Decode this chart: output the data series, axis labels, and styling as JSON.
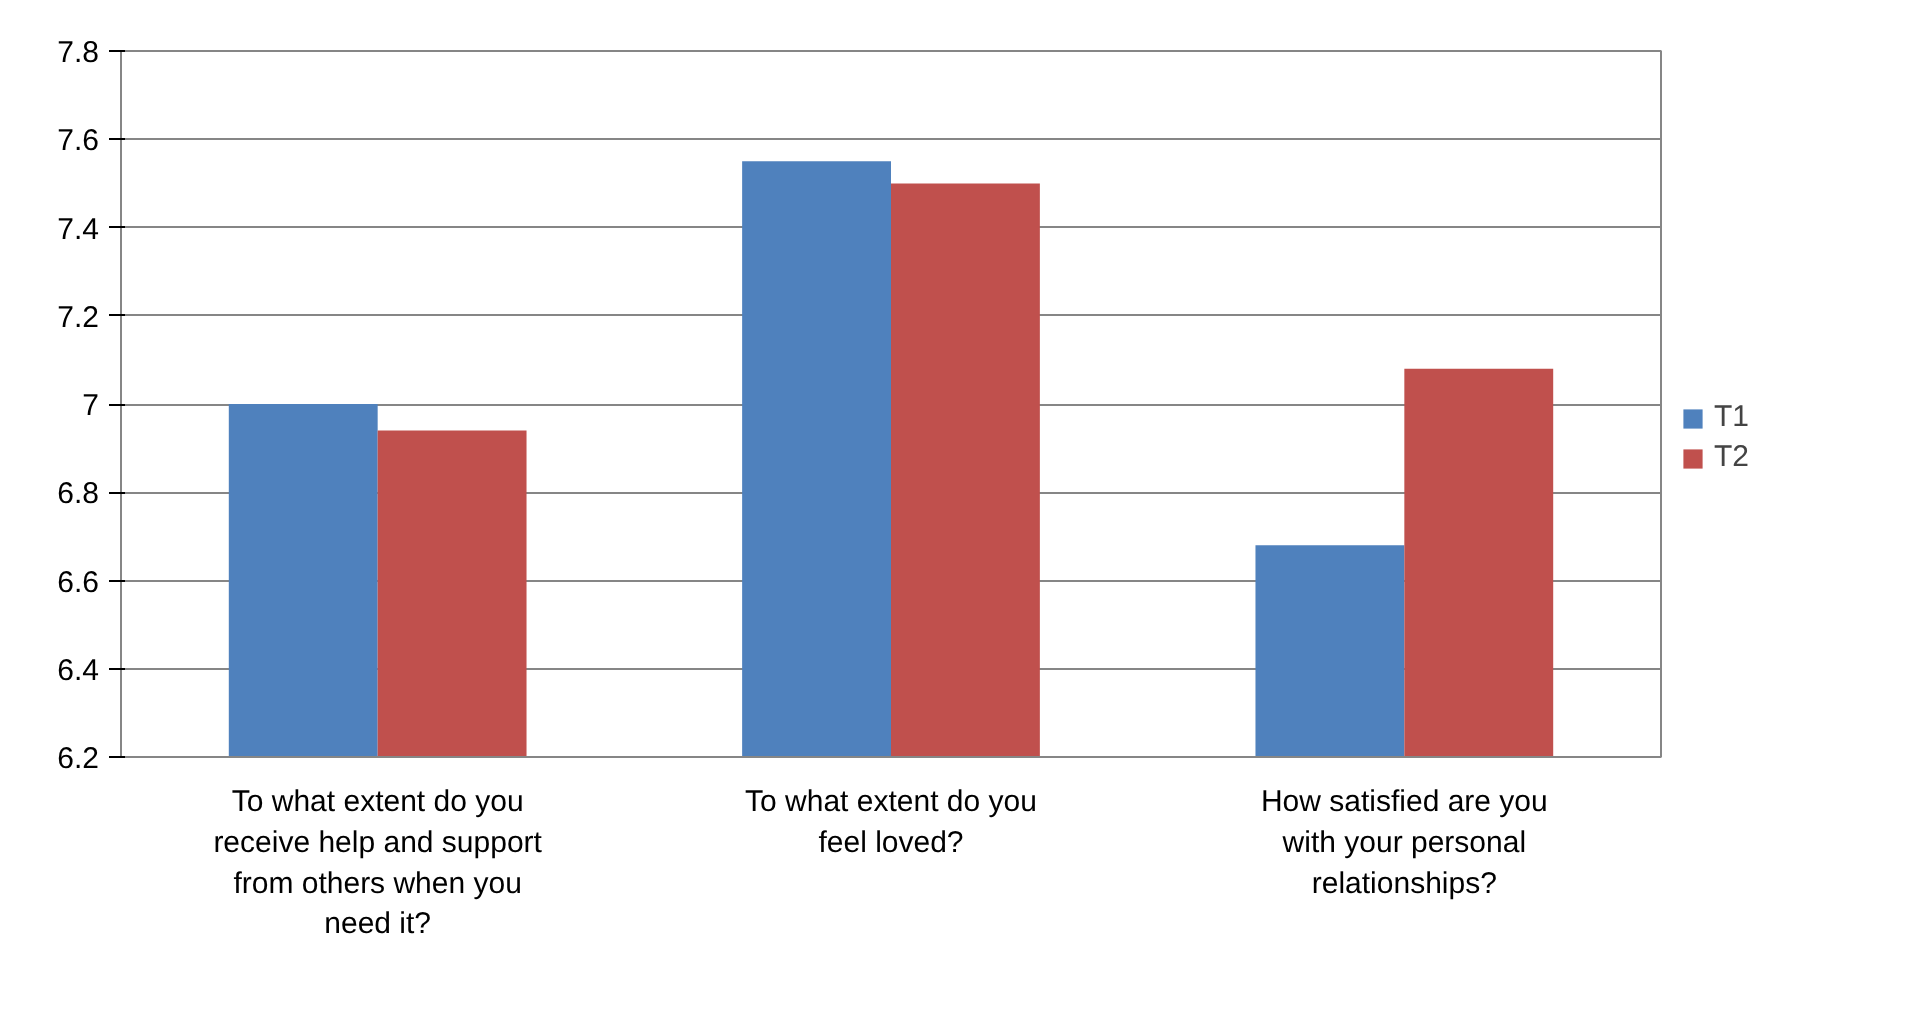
{
  "chart_data": {
    "type": "bar",
    "categories": [
      "To what extent do you receive help and support from others when you need it?",
      "To what extent do you feel loved?",
      "How satisfied are you with your personal relationships?"
    ],
    "series": [
      {
        "name": "T1",
        "color": "#4f81bd",
        "values": [
          7.0,
          7.55,
          6.68
        ]
      },
      {
        "name": "T2",
        "color": "#c0504d",
        "values": [
          6.94,
          7.5,
          7.08
        ]
      }
    ],
    "ylim": [
      6.2,
      7.8
    ],
    "yticks": [
      6.2,
      6.4,
      6.6,
      6.8,
      7,
      7.2,
      7.4,
      7.6,
      7.8
    ],
    "grid": "y",
    "legend": "right"
  }
}
